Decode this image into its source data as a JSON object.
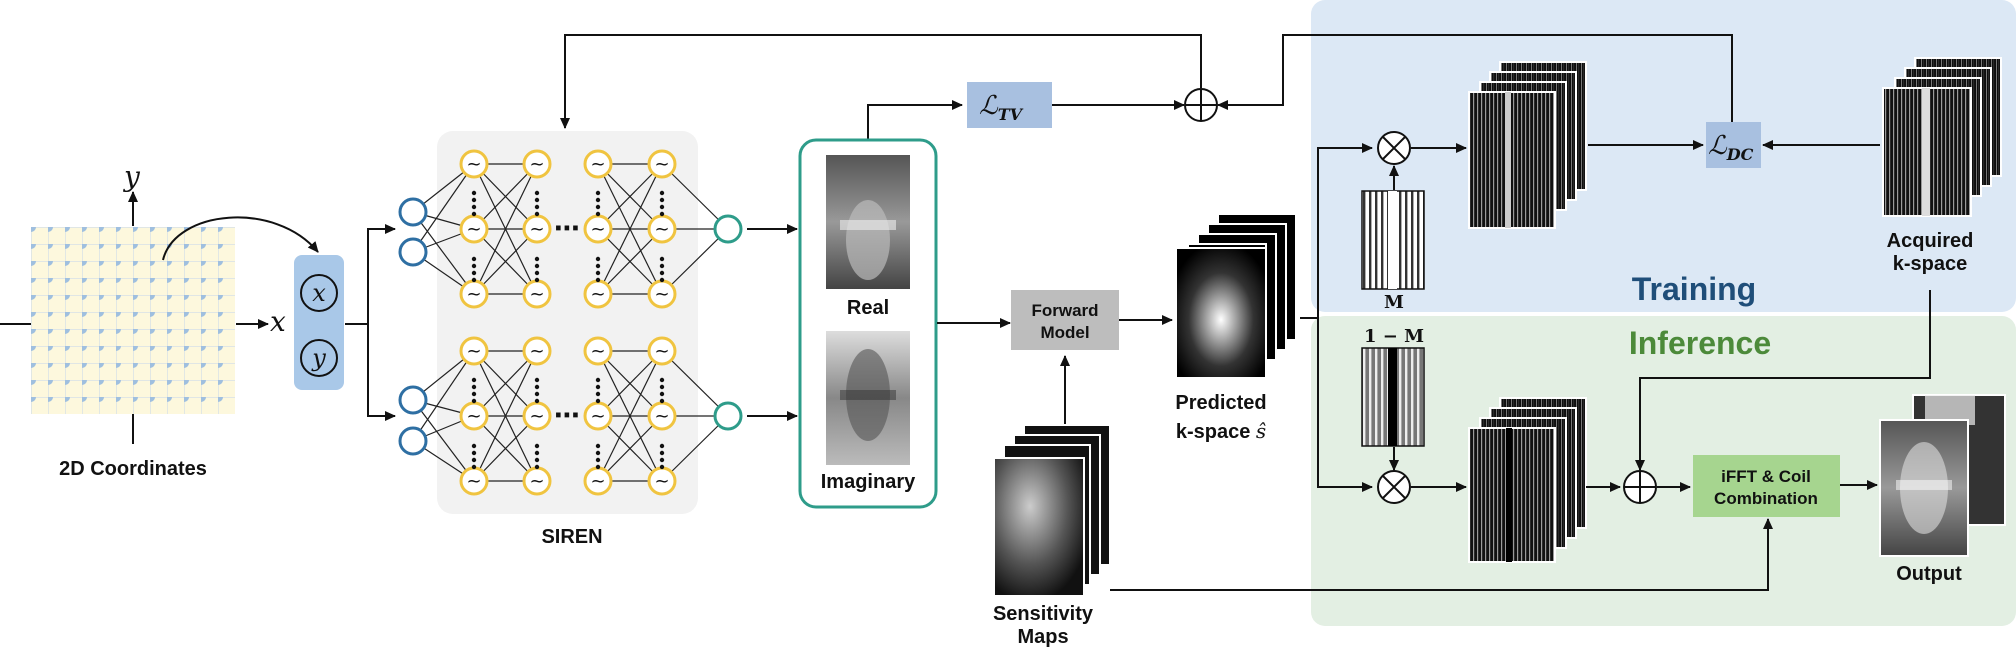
{
  "labels": {
    "coordinates": "2D Coordinates",
    "siren": "SIREN",
    "real": "Real",
    "imaginary": "Imaginary",
    "forward_model_line1": "Forward",
    "forward_model_line2": "Model",
    "predicted_line1": "Predicted",
    "predicted_line2": "k-space",
    "predicted_symbol": "ŝ",
    "sensitivity_line1": "Sensitivity",
    "sensitivity_line2": "Maps",
    "training": "Training",
    "inference": "Inference",
    "acquired_line1": "Acquired",
    "acquired_line2": "k-space",
    "ifft_line1": "iFFT & Coil",
    "ifft_line2": "Combination",
    "output": "Output",
    "mask": "M",
    "inverse_mask": "1 − M",
    "loss_tv_main": "ℒ",
    "loss_tv_sub": "TV",
    "loss_dc_main": "ℒ",
    "loss_dc_sub": "DC",
    "axis_x": "x",
    "axis_y": "y",
    "input_x": "x",
    "input_y": "y",
    "siren_sine": "~",
    "ellipsis": "⋯"
  },
  "colors": {
    "training_bg": "#dce8f5",
    "inference_bg": "#e3efe3",
    "training_text": "#1f4e79",
    "inference_text": "#4c8a3a",
    "loss_box": "#a8c0e0",
    "input_box": "#a9c8e8",
    "forward_box": "#bdbdbd",
    "ifft_box": "#a6d58f",
    "neuron_blue": "#2e6fa3",
    "neuron_yellow": "#f0c440",
    "neuron_teal": "#2e9c8a",
    "grid_fill": "#fdf8dd",
    "grid_dot": "#9fbfdf"
  }
}
